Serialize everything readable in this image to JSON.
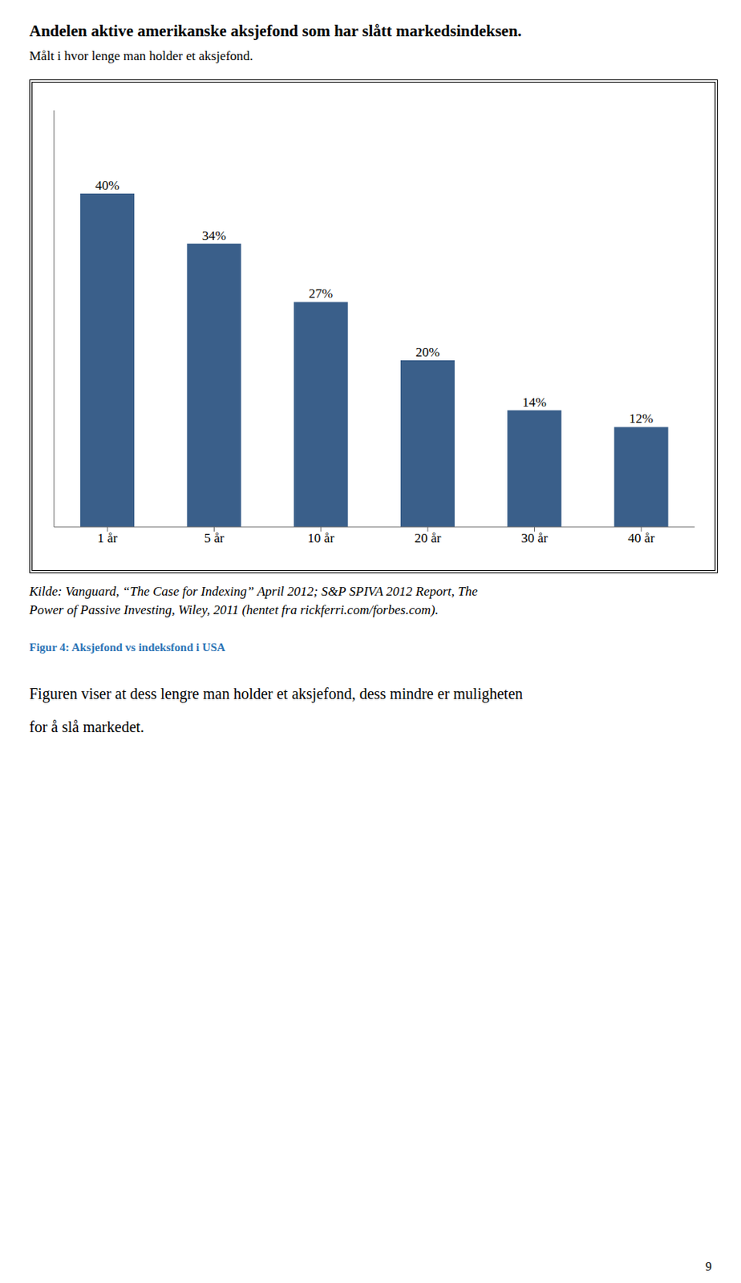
{
  "chart_data": {
    "type": "bar",
    "title": "Andelen aktive amerikanske aksjefond som har slått markedsindeksen.",
    "subtitle": "Målt i hvor lenge man holder et aksjefond.",
    "categories": [
      "1 år",
      "5 år",
      "10 år",
      "20 år",
      "30 år",
      "40 år"
    ],
    "values": [
      40,
      34,
      27,
      20,
      14,
      12
    ],
    "value_labels": [
      "40%",
      "34%",
      "27%",
      "20%",
      "14%",
      "12%"
    ],
    "data_labels": true,
    "color": "#3a5f8a",
    "ylim": [
      0,
      50
    ],
    "yticks": [],
    "grid": false,
    "tick_labels": "x",
    "annotations": [
      {
        "text": "Kilde: Vanguard, “The Case for Indexing” April 2012; S&P SPIVA 2012 Report, The"
      },
      {
        "text": "Power of Passive Investing, Wiley, 2011 (hentet fra rickferri.com/forbes.com)."
      },
      {
        "text": "Figur 4: Aksjefond vs indeksfond i USA",
        "color": "#2e75b6"
      },
      {
        "text": "Figuren viser at dess lengre man holder et aksjefond, dess mindre er muligheten"
      },
      {
        "text": "for å slå markedet."
      },
      {
        "text": "9"
      }
    ]
  }
}
